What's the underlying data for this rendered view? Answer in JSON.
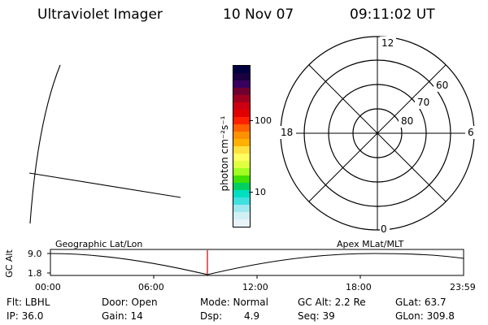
{
  "header": {
    "instrument": "Ultraviolet Imager",
    "date": "10 Nov 07",
    "time": "09:11:02 UT"
  },
  "colorbar": {
    "unit_label": "photon cm⁻²s⁻¹",
    "tick_high": "100",
    "tick_low": "10",
    "colors": [
      "#000040",
      "#1a0040",
      "#3a0060",
      "#700030",
      "#a00020",
      "#cc0010",
      "#e00000",
      "#ff2000",
      "#ff6000",
      "#ff9000",
      "#ffb000",
      "#ffe040",
      "#ffff60",
      "#e0ff40",
      "#a0ff20",
      "#40e000",
      "#00d060",
      "#00e0c0",
      "#40e0e0",
      "#a0e8f0",
      "#d0f0f4",
      "#e8f4f8"
    ]
  },
  "polar_plot": {
    "mlt_labels": {
      "top": "12",
      "right": "6",
      "left": "18",
      "bottom": "0"
    },
    "lat_labels": [
      "60",
      "70",
      "80"
    ]
  },
  "timeline": {
    "y_axis_label": "GC Alt",
    "y_max": "9.0",
    "y_min": "1.8",
    "left_caption": "Geographic Lat/Lon",
    "right_caption": "Apex MLat/MLT",
    "x_ticks": [
      "00:00",
      "06:00",
      "12:00",
      "18:00",
      "23:59"
    ],
    "marker_color": "#cc0000"
  },
  "status": {
    "flt": "Flt: LBHL",
    "ip": "IP: 36.0",
    "door": "Door: Open",
    "gain": "Gain: 14",
    "mode": "Mode: Normal",
    "dsp_label": "Dsp:",
    "dsp_value": "4.9",
    "gc_alt": "GC Alt: 2.2 Re",
    "seq": "Seq: 39",
    "glat": "GLat: 63.7",
    "glon": "GLon: 309.8"
  }
}
